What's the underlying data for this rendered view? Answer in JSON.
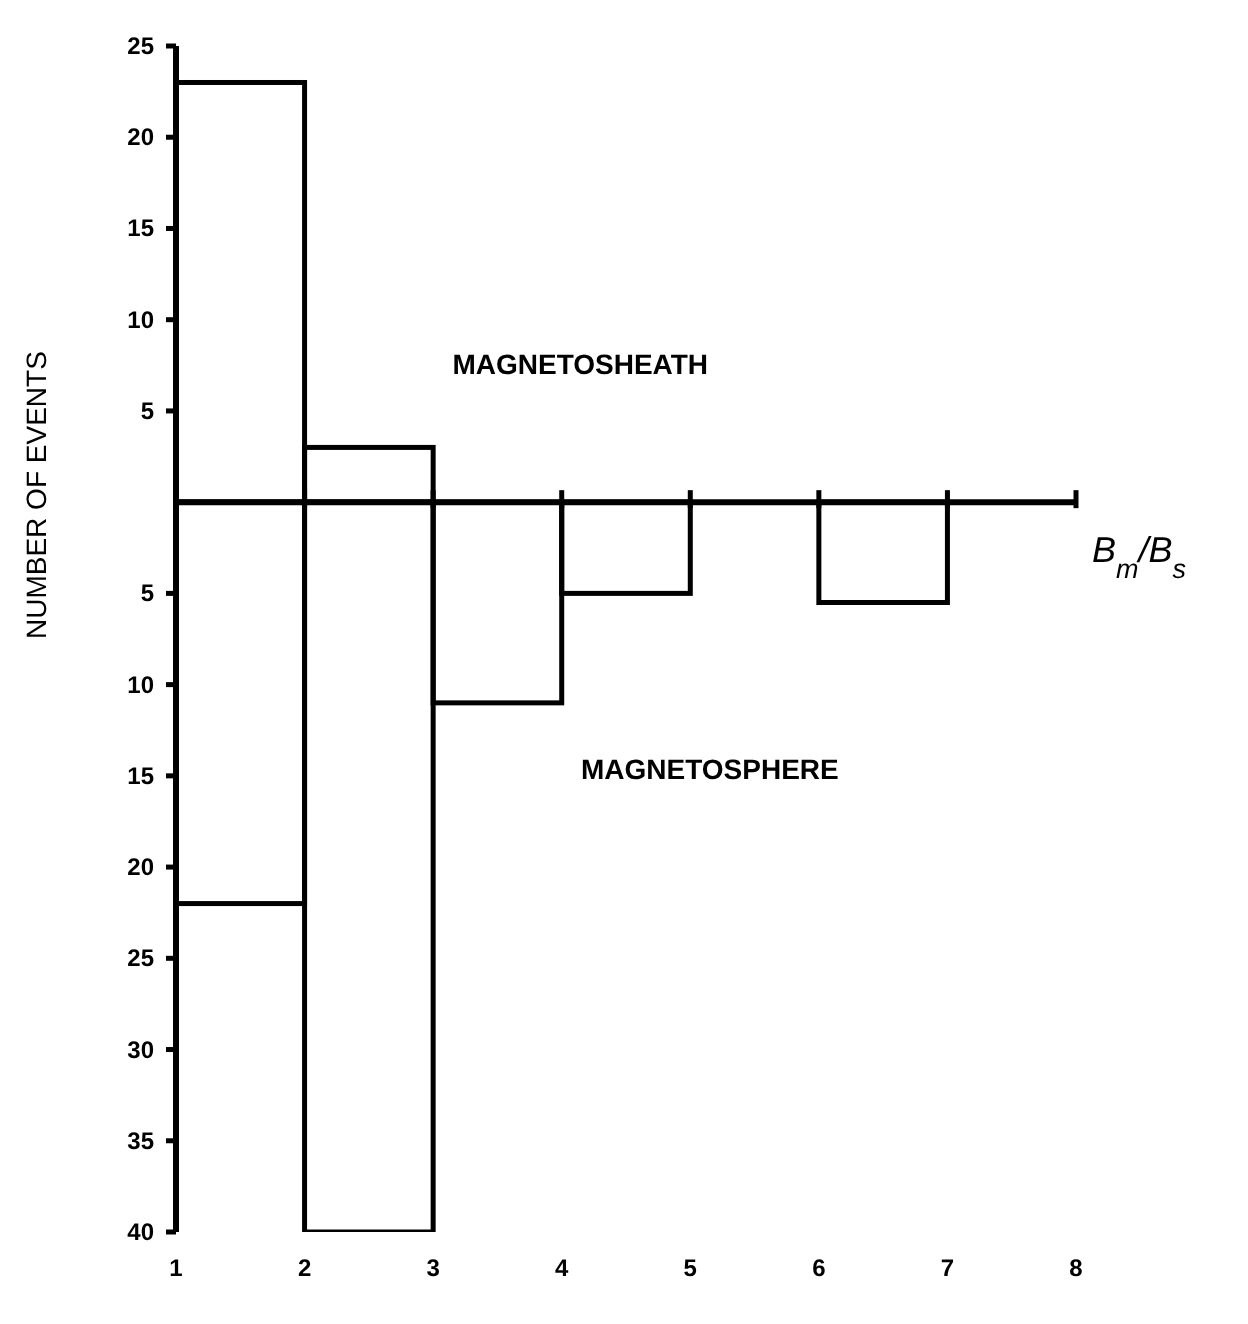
{
  "chart_data": {
    "type": "histogram",
    "xlabel": "B$_{m}$/B$_{s}$",
    "ylabel": "NUMBER OF EVENTS",
    "bins": [
      1,
      2,
      3,
      4,
      5,
      6,
      7,
      8
    ],
    "series": [
      {
        "name": "MAGNETOSHEATH",
        "color": "#000000",
        "values": [
          23,
          3,
          0,
          0,
          0,
          0,
          0
        ]
      },
      {
        "name": "MAGNETOSPHERE",
        "color": "#000000",
        "values": [
          -22,
          -40,
          -11,
          -5,
          0,
          -5.5,
          0
        ]
      }
    ],
    "xlim": [
      1,
      8
    ],
    "xticks": [
      1,
      2,
      3,
      4,
      5,
      6,
      7,
      8
    ],
    "ylim": [
      -40,
      25
    ],
    "yticks": [
      {
        "value": -40,
        "label": "40"
      },
      {
        "value": -35,
        "label": "35"
      },
      {
        "value": -30,
        "label": "30"
      },
      {
        "value": -25,
        "label": "25"
      },
      {
        "value": -20,
        "label": "20"
      },
      {
        "value": -15,
        "label": "15"
      },
      {
        "value": -10,
        "label": "10"
      },
      {
        "value": -5,
        "label": "5"
      },
      5,
      10,
      15,
      20,
      25
    ],
    "grid": false,
    "legend": false
  }
}
